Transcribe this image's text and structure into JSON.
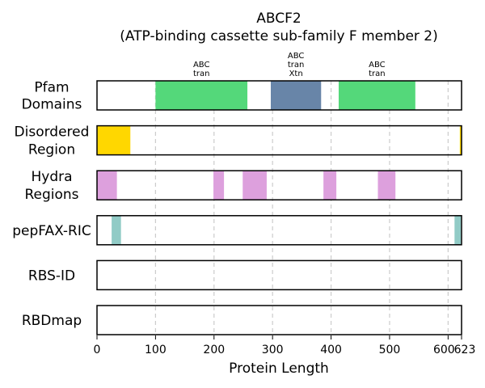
{
  "chart_data": {
    "type": "bar",
    "title_lines": [
      "ABCF2",
      "(ATP-binding cassette sub-family F member 2)"
    ],
    "xlabel": "Protein Length",
    "xlim": [
      0,
      623
    ],
    "xticks": [
      0,
      100,
      200,
      300,
      400,
      500,
      600,
      623
    ],
    "grid": "vertical dashed",
    "tracks": [
      {
        "label_lines": [
          "Pfam",
          "Domains"
        ],
        "segments": [
          {
            "start": 100,
            "end": 257,
            "color": "#54d87a",
            "label_lines": [
              "ABC",
              "tran"
            ]
          },
          {
            "start": 297,
            "end": 383,
            "color": "#6885a8",
            "label_lines": [
              "ABC",
              "tran",
              "Xtn"
            ]
          },
          {
            "start": 413,
            "end": 544,
            "color": "#54d87a",
            "label_lines": [
              "ABC",
              "tran"
            ]
          }
        ]
      },
      {
        "label_lines": [
          "Disordered",
          "Region"
        ],
        "segments": [
          {
            "start": 0,
            "end": 57,
            "color": "#ffd700"
          },
          {
            "start": 620,
            "end": 623,
            "color": "#ffd700"
          }
        ]
      },
      {
        "label_lines": [
          "Hydra",
          "Regions"
        ],
        "segments": [
          {
            "start": 0,
            "end": 34,
            "color": "#dda0dd"
          },
          {
            "start": 199,
            "end": 217,
            "color": "#dda0dd"
          },
          {
            "start": 249,
            "end": 290,
            "color": "#dda0dd"
          },
          {
            "start": 387,
            "end": 409,
            "color": "#dda0dd"
          },
          {
            "start": 480,
            "end": 510,
            "color": "#dda0dd"
          }
        ]
      },
      {
        "label_lines": [
          "pepFAX-RIC"
        ],
        "segments": [
          {
            "start": 25,
            "end": 41,
            "color": "#91cbc6"
          },
          {
            "start": 611,
            "end": 622,
            "color": "#91cbc6"
          }
        ]
      },
      {
        "label_lines": [
          "RBS-ID"
        ],
        "segments": []
      },
      {
        "label_lines": [
          "RBDmap"
        ],
        "segments": []
      }
    ]
  }
}
